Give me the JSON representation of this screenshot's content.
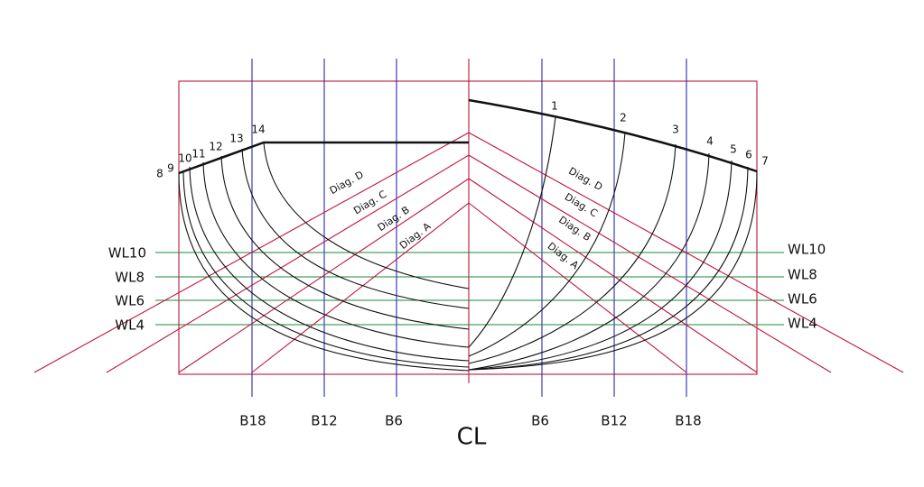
{
  "stations": [
    "1",
    "2",
    "3",
    "4",
    "5",
    "6",
    "7",
    "8",
    "9",
    "10",
    "11",
    "12",
    "13",
    "14"
  ],
  "diagonals": [
    "Diag. A",
    "Diag. B",
    "Diag. C",
    "Diag. D"
  ],
  "waterlines": [
    "WL10",
    "WL8",
    "WL6",
    "WL4"
  ],
  "buttocks": [
    "B6",
    "B12",
    "B18"
  ],
  "centerline": "CL"
}
